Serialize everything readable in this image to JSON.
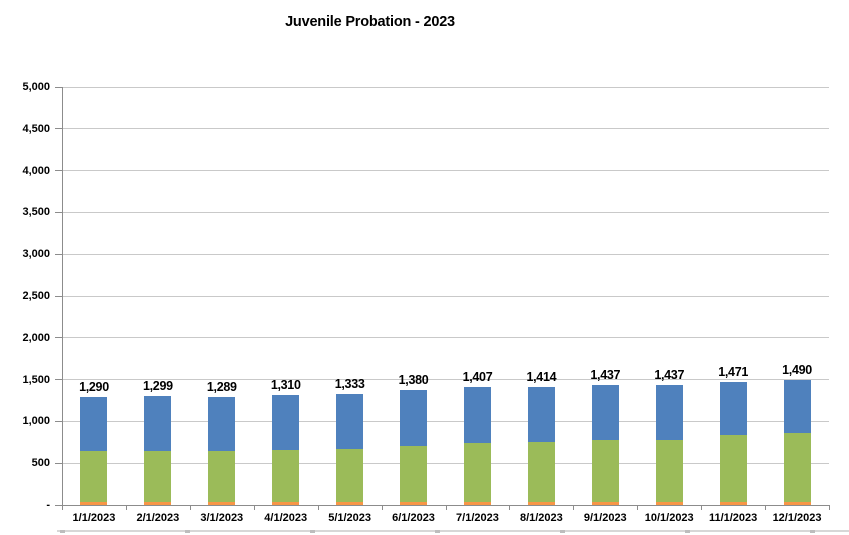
{
  "chart_data": {
    "type": "bar",
    "stacked": true,
    "title": "Juvenile Probation - 2023",
    "categories": [
      "1/1/2023",
      "2/1/2023",
      "3/1/2023",
      "4/1/2023",
      "5/1/2023",
      "6/1/2023",
      "7/1/2023",
      "8/1/2023",
      "9/1/2023",
      "10/1/2023",
      "11/1/2023",
      "12/1/2023"
    ],
    "totals": [
      1290,
      1299,
      1289,
      1310,
      1333,
      1380,
      1407,
      1414,
      1437,
      1437,
      1471,
      1490
    ],
    "total_labels": [
      "1,290",
      "1,299",
      "1,289",
      "1,310",
      "1,333",
      "1,380",
      "1,407",
      "1,414",
      "1,437",
      "1,437",
      "1,471",
      "1,490"
    ],
    "series": [
      {
        "name": "bottom-orange-segment",
        "color": "#F79646",
        "values": [
          40,
          40,
          40,
          40,
          40,
          40,
          40,
          40,
          40,
          40,
          40,
          40
        ]
      },
      {
        "name": "middle-green-segment",
        "color": "#9BBB59",
        "values": [
          600,
          610,
          600,
          615,
          635,
          670,
          700,
          710,
          735,
          740,
          795,
          825
        ]
      },
      {
        "name": "top-blue-segment",
        "color": "#4F81BD",
        "values": [
          650,
          649,
          649,
          655,
          658,
          670,
          667,
          664,
          662,
          657,
          636,
          625
        ]
      }
    ],
    "ylim": [
      0,
      5000
    ],
    "ytick_interval": 500,
    "ytick_labels_bottom_up": [
      "-",
      "500",
      "1,000",
      "1,500",
      "2,000",
      "2,500",
      "3,000",
      "3,500",
      "4,000",
      "4,500",
      "5,000"
    ],
    "grid": true,
    "legend": "none"
  },
  "palette": {
    "gridline": "#c9c9c9",
    "axis": "#8c8c8c",
    "label_text": "#000000",
    "bottom_strip": "#d7d7d7"
  }
}
